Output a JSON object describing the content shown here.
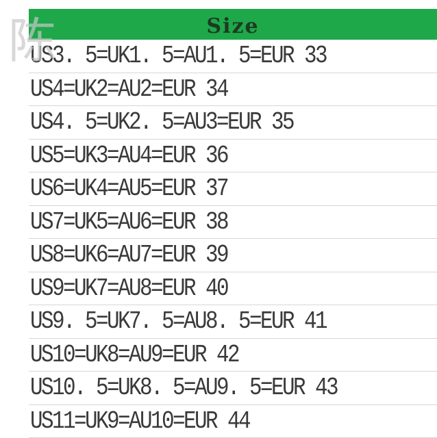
{
  "header": {
    "title": "Size"
  },
  "watermark": "陈",
  "colors": {
    "header_bg": "#1ea84a"
  },
  "rows": [
    "US3. 5=UK1. 5=AU1. 5=EUR 33",
    "US4=UK2=AU2=EUR 34",
    "US4. 5=UK2. 5=AU3=EUR 35",
    "US5=UK3=AU4=EUR 36",
    "US6=UK4=AU5=EUR 37",
    "US7=UK5=AU6=EUR 38",
    "US8=UK6=AU7=EUR 39",
    "US9=UK7=AU8=EUR 40",
    "US9. 5=UK7. 5=AU8. 5=EUR 41",
    "US10=UK8=AU9=EUR 42",
    "US10. 5=UK8. 5=AU9. 5=EUR 43",
    "US11=UK9=AU10=EUR 44"
  ]
}
